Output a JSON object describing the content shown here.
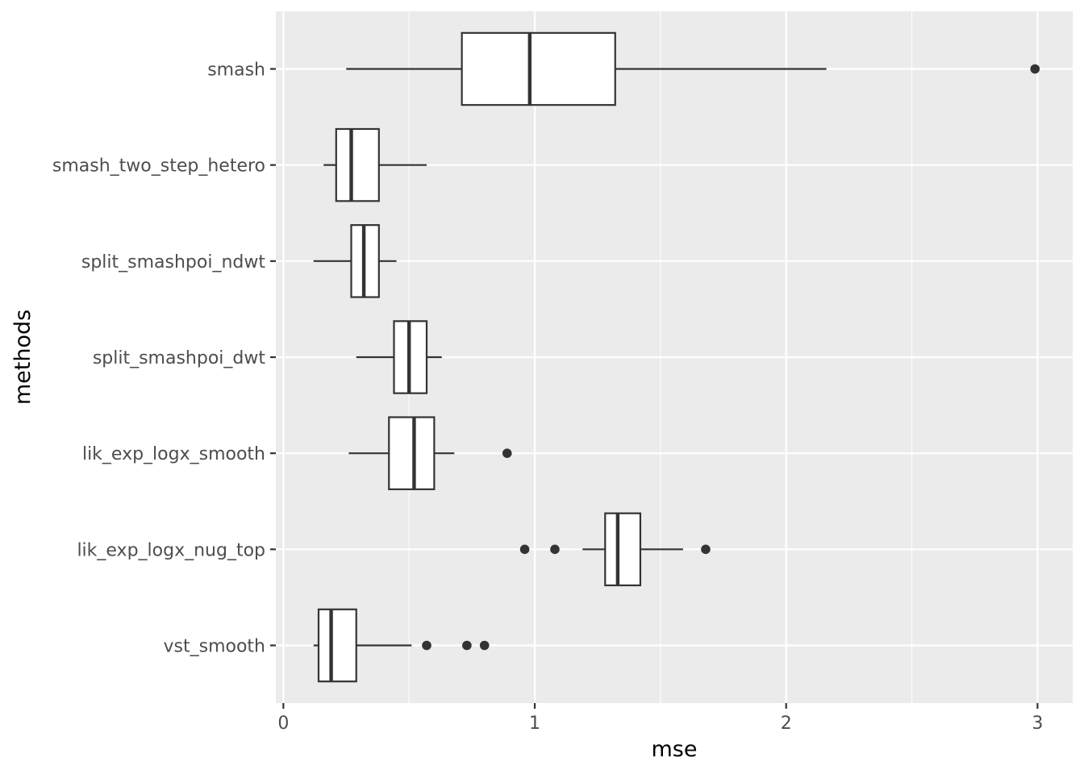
{
  "chart_data": {
    "type": "boxplot",
    "orientation": "horizontal",
    "xlabel": "mse",
    "ylabel": "methods",
    "xlim": [
      -0.03,
      3.14
    ],
    "x_ticks": [
      0,
      1,
      2,
      3
    ],
    "x_tick_labels": [
      "0",
      "1",
      "2",
      "3"
    ],
    "grid": true,
    "categories": [
      "smash",
      "smash_two_step_hetero",
      "split_smashpoi_ndwt",
      "split_smashpoi_dwt",
      "lik_exp_logx_smooth",
      "lik_exp_logx_nug_top",
      "vst_smooth"
    ],
    "boxes": [
      {
        "method": "smash",
        "whisker_low": 0.25,
        "q1": 0.71,
        "median": 0.98,
        "q3": 1.32,
        "whisker_high": 2.16,
        "outliers": [
          2.99
        ]
      },
      {
        "method": "smash_two_step_hetero",
        "whisker_low": 0.16,
        "q1": 0.21,
        "median": 0.27,
        "q3": 0.38,
        "whisker_high": 0.57,
        "outliers": []
      },
      {
        "method": "split_smashpoi_ndwt",
        "whisker_low": 0.12,
        "q1": 0.27,
        "median": 0.32,
        "q3": 0.38,
        "whisker_high": 0.45,
        "outliers": []
      },
      {
        "method": "split_smashpoi_dwt",
        "whisker_low": 0.29,
        "q1": 0.44,
        "median": 0.5,
        "q3": 0.57,
        "whisker_high": 0.63,
        "outliers": []
      },
      {
        "method": "lik_exp_logx_smooth",
        "whisker_low": 0.26,
        "q1": 0.42,
        "median": 0.52,
        "q3": 0.6,
        "whisker_high": 0.68,
        "outliers": [
          0.89
        ]
      },
      {
        "method": "lik_exp_logx_nug_top",
        "whisker_low": 1.19,
        "q1": 1.28,
        "median": 1.33,
        "q3": 1.42,
        "whisker_high": 1.59,
        "outliers": [
          0.96,
          1.08,
          1.68
        ]
      },
      {
        "method": "vst_smooth",
        "whisker_low": 0.12,
        "q1": 0.14,
        "median": 0.19,
        "q3": 0.29,
        "whisker_high": 0.51,
        "outliers": [
          0.57,
          0.73,
          0.8
        ]
      }
    ],
    "colors": {
      "panel_background": "#ebebeb",
      "grid": "#ffffff",
      "box_fill": "#ffffff",
      "box_line": "#333333",
      "axis_text": "#4d4d4d",
      "axis_title": "#000000"
    }
  }
}
